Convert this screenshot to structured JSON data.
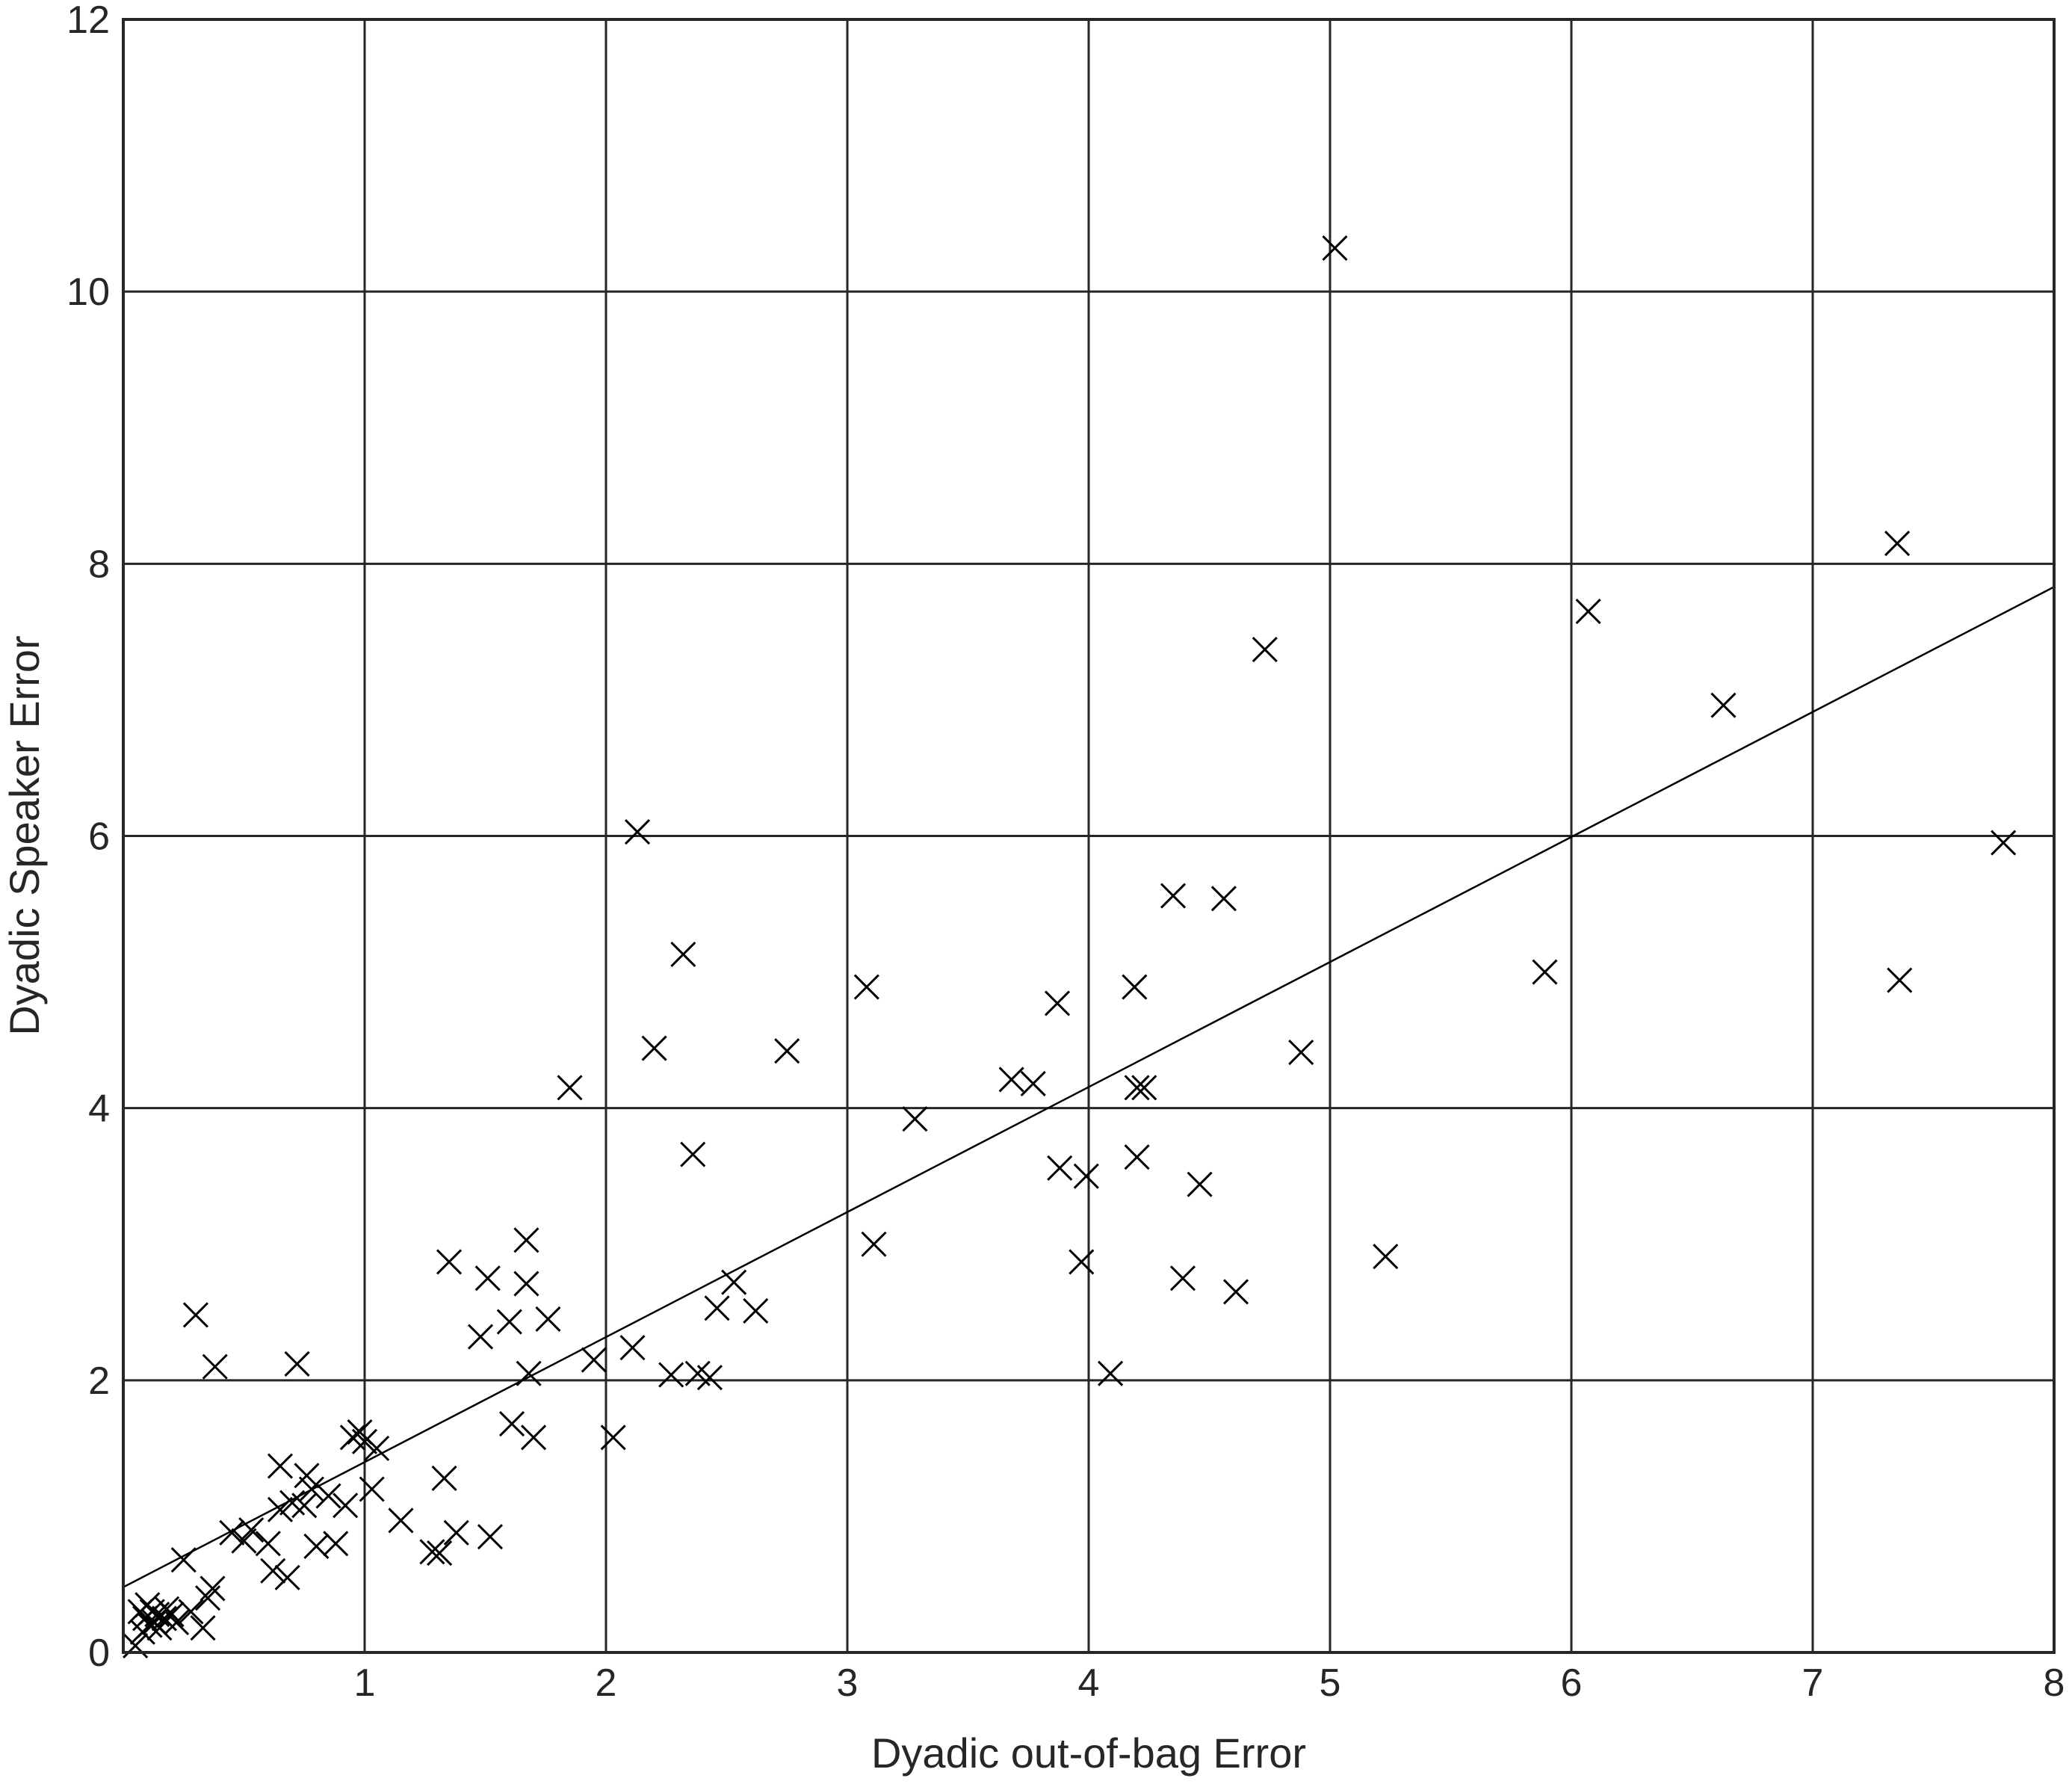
{
  "chart_data": {
    "type": "scatter",
    "title": "",
    "xlabel": "Dyadic out-of-bag Error",
    "ylabel": "Dyadic Speaker Error",
    "xlim": [
      0,
      8
    ],
    "ylim": [
      0,
      12
    ],
    "xticks": [
      1,
      2,
      3,
      4,
      5,
      6,
      7,
      8
    ],
    "yticks": [
      0,
      2,
      4,
      6,
      8,
      10,
      12
    ],
    "grid": true,
    "marker": "x",
    "colors": {
      "marker": "#000000",
      "grid": "#262626",
      "axes": "#262626",
      "text": "#262626"
    },
    "fit_line": {
      "x": [
        0,
        8
      ],
      "y": [
        0.48,
        7.83
      ]
    },
    "points": [
      [
        0.05,
        0.05
      ],
      [
        0.07,
        0.3
      ],
      [
        0.08,
        0.15
      ],
      [
        0.09,
        0.25
      ],
      [
        0.1,
        0.35
      ],
      [
        0.11,
        0.2
      ],
      [
        0.12,
        0.3
      ],
      [
        0.13,
        0.22
      ],
      [
        0.14,
        0.28
      ],
      [
        0.15,
        0.18
      ],
      [
        0.17,
        0.25
      ],
      [
        0.18,
        0.32
      ],
      [
        0.2,
        0.28
      ],
      [
        0.22,
        0.22
      ],
      [
        0.25,
        0.68
      ],
      [
        0.28,
        0.3
      ],
      [
        0.3,
        2.48
      ],
      [
        0.33,
        0.18
      ],
      [
        0.35,
        0.4
      ],
      [
        0.37,
        0.47
      ],
      [
        0.38,
        2.1
      ],
      [
        0.45,
        0.88
      ],
      [
        0.5,
        0.82
      ],
      [
        0.53,
        0.9
      ],
      [
        0.6,
        0.8
      ],
      [
        0.62,
        0.6
      ],
      [
        0.65,
        1.05
      ],
      [
        0.65,
        1.37
      ],
      [
        0.68,
        0.55
      ],
      [
        0.7,
        1.1
      ],
      [
        0.72,
        2.12
      ],
      [
        0.75,
        1.08
      ],
      [
        0.76,
        1.3
      ],
      [
        0.78,
        1.2
      ],
      [
        0.8,
        0.78
      ],
      [
        0.85,
        1.15
      ],
      [
        0.88,
        0.8
      ],
      [
        0.92,
        1.08
      ],
      [
        0.95,
        1.58
      ],
      [
        0.98,
        1.62
      ],
      [
        1.0,
        1.55
      ],
      [
        1.03,
        1.2
      ],
      [
        1.05,
        1.5
      ],
      [
        1.15,
        0.97
      ],
      [
        1.28,
        0.74
      ],
      [
        1.31,
        0.73
      ],
      [
        1.33,
        1.28
      ],
      [
        1.35,
        2.87
      ],
      [
        1.38,
        0.88
      ],
      [
        1.48,
        2.32
      ],
      [
        1.51,
        2.75
      ],
      [
        1.52,
        0.85
      ],
      [
        1.6,
        2.43
      ],
      [
        1.61,
        1.68
      ],
      [
        1.67,
        3.03
      ],
      [
        1.67,
        2.71
      ],
      [
        1.68,
        2.05
      ],
      [
        1.7,
        1.58
      ],
      [
        1.76,
        2.45
      ],
      [
        1.85,
        4.15
      ],
      [
        1.95,
        2.15
      ],
      [
        2.03,
        1.58
      ],
      [
        2.11,
        2.24
      ],
      [
        2.13,
        6.03
      ],
      [
        2.2,
        4.44
      ],
      [
        2.27,
        2.04
      ],
      [
        2.32,
        5.13
      ],
      [
        2.36,
        3.66
      ],
      [
        2.38,
        2.05
      ],
      [
        2.43,
        2.02
      ],
      [
        2.46,
        2.53
      ],
      [
        2.53,
        2.72
      ],
      [
        2.62,
        2.51
      ],
      [
        2.75,
        4.42
      ],
      [
        3.08,
        4.89
      ],
      [
        3.11,
        3.0
      ],
      [
        3.28,
        3.92
      ],
      [
        3.68,
        4.21
      ],
      [
        3.77,
        4.18
      ],
      [
        3.87,
        4.77
      ],
      [
        3.88,
        3.56
      ],
      [
        3.97,
        2.87
      ],
      [
        3.99,
        3.5
      ],
      [
        4.09,
        2.05
      ],
      [
        4.19,
        4.89
      ],
      [
        4.2,
        4.15
      ],
      [
        4.2,
        3.64
      ],
      [
        4.23,
        4.15
      ],
      [
        4.35,
        5.56
      ],
      [
        4.39,
        2.75
      ],
      [
        4.46,
        3.44
      ],
      [
        4.56,
        5.54
      ],
      [
        4.61,
        2.65
      ],
      [
        4.73,
        7.37
      ],
      [
        4.88,
        4.41
      ],
      [
        5.02,
        10.32
      ],
      [
        5.23,
        2.91
      ],
      [
        5.89,
        5.0
      ],
      [
        6.07,
        7.65
      ],
      [
        6.63,
        6.96
      ],
      [
        7.35,
        8.15
      ],
      [
        7.36,
        4.94
      ],
      [
        7.79,
        5.95
      ]
    ]
  }
}
